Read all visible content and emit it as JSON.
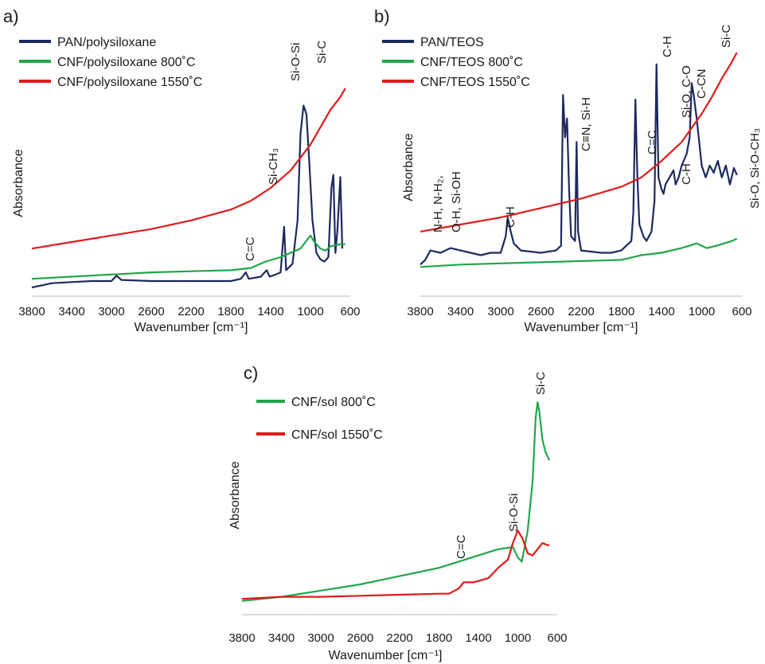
{
  "chart_data": [
    {
      "panel": "a)",
      "type": "line",
      "xlabel": "Wavenumber  [cm⁻¹]",
      "ylabel": "Absorbance",
      "x_ticks": [
        3800,
        3400,
        3000,
        2600,
        2200,
        1800,
        1400,
        1000,
        600
      ],
      "xlim": [
        3800,
        600
      ],
      "x_reversed": true,
      "ylim": [
        0,
        1
      ],
      "legend_position": "top-left",
      "series": [
        {
          "name": "PAN/polysiloxane",
          "color": "#1b2a5e",
          "points": [
            [
              3800,
              0.04
            ],
            [
              3700,
              0.05
            ],
            [
              3600,
              0.06
            ],
            [
              3400,
              0.065
            ],
            [
              3200,
              0.07
            ],
            [
              3000,
              0.07
            ],
            [
              2950,
              0.095
            ],
            [
              2900,
              0.075
            ],
            [
              2600,
              0.07
            ],
            [
              2200,
              0.07
            ],
            [
              1800,
              0.07
            ],
            [
              1700,
              0.08
            ],
            [
              1650,
              0.11
            ],
            [
              1620,
              0.08
            ],
            [
              1500,
              0.09
            ],
            [
              1440,
              0.12
            ],
            [
              1410,
              0.09
            ],
            [
              1350,
              0.1
            ],
            [
              1300,
              0.11
            ],
            [
              1265,
              0.32
            ],
            [
              1245,
              0.12
            ],
            [
              1180,
              0.15
            ],
            [
              1130,
              0.35
            ],
            [
              1100,
              0.75
            ],
            [
              1070,
              0.88
            ],
            [
              1040,
              0.84
            ],
            [
              1010,
              0.6
            ],
            [
              980,
              0.35
            ],
            [
              940,
              0.2
            ],
            [
              900,
              0.17
            ],
            [
              860,
              0.16
            ],
            [
              820,
              0.18
            ],
            [
              790,
              0.5
            ],
            [
              770,
              0.56
            ],
            [
              750,
              0.2
            ],
            [
              730,
              0.3
            ],
            [
              700,
              0.55
            ],
            [
              680,
              0.22
            ]
          ]
        },
        {
          "name": "CNF/polysiloxane  800˚C",
          "color": "#22a64a",
          "points": [
            [
              3800,
              0.08
            ],
            [
              3400,
              0.09
            ],
            [
              3000,
              0.1
            ],
            [
              2600,
              0.11
            ],
            [
              2200,
              0.115
            ],
            [
              1800,
              0.12
            ],
            [
              1600,
              0.13
            ],
            [
              1450,
              0.16
            ],
            [
              1300,
              0.18
            ],
            [
              1200,
              0.2
            ],
            [
              1100,
              0.22
            ],
            [
              1000,
              0.28
            ],
            [
              960,
              0.25
            ],
            [
              900,
              0.22
            ],
            [
              850,
              0.21
            ],
            [
              800,
              0.23
            ],
            [
              700,
              0.24
            ],
            [
              650,
              0.24
            ]
          ]
        },
        {
          "name": "CNF/polysiloxane  1550˚C",
          "color": "#e01b1b",
          "points": [
            [
              3800,
              0.22
            ],
            [
              3400,
              0.25
            ],
            [
              3000,
              0.28
            ],
            [
              2600,
              0.31
            ],
            [
              2200,
              0.35
            ],
            [
              1800,
              0.4
            ],
            [
              1600,
              0.44
            ],
            [
              1400,
              0.5
            ],
            [
              1300,
              0.54
            ],
            [
              1200,
              0.58
            ],
            [
              1100,
              0.64
            ],
            [
              1000,
              0.7
            ],
            [
              900,
              0.78
            ],
            [
              800,
              0.86
            ],
            [
              700,
              0.92
            ],
            [
              650,
              0.96
            ]
          ]
        }
      ],
      "annotations": [
        "C=C",
        "Si-CH₃",
        "Si-O-Si",
        "Si-C"
      ]
    },
    {
      "panel": "b)",
      "type": "line",
      "xlabel": "Wavenumber  [cm⁻¹]",
      "ylabel": "Absorbance",
      "x_ticks": [
        3800,
        3400,
        3000,
        2600,
        2200,
        1800,
        1400,
        1000,
        600
      ],
      "xlim": [
        3800,
        600
      ],
      "x_reversed": true,
      "ylim": [
        0,
        1
      ],
      "legend_position": "top-left",
      "series": [
        {
          "name": "PAN/TEOS",
          "color": "#1b2a5e",
          "points": [
            [
              3800,
              0.08
            ],
            [
              3750,
              0.1
            ],
            [
              3700,
              0.14
            ],
            [
              3600,
              0.13
            ],
            [
              3500,
              0.15
            ],
            [
              3400,
              0.14
            ],
            [
              3300,
              0.13
            ],
            [
              3200,
              0.12
            ],
            [
              3100,
              0.13
            ],
            [
              3000,
              0.13
            ],
            [
              2950,
              0.2
            ],
            [
              2930,
              0.28
            ],
            [
              2900,
              0.22
            ],
            [
              2870,
              0.17
            ],
            [
              2800,
              0.14
            ],
            [
              2600,
              0.13
            ],
            [
              2450,
              0.14
            ],
            [
              2400,
              0.16
            ],
            [
              2380,
              0.8
            ],
            [
              2360,
              0.62
            ],
            [
              2340,
              0.7
            ],
            [
              2320,
              0.4
            ],
            [
              2300,
              0.2
            ],
            [
              2260,
              0.18
            ],
            [
              2245,
              0.6
            ],
            [
              2230,
              0.22
            ],
            [
              2200,
              0.14
            ],
            [
              2000,
              0.13
            ],
            [
              1900,
              0.13
            ],
            [
              1800,
              0.14
            ],
            [
              1700,
              0.18
            ],
            [
              1680,
              0.3
            ],
            [
              1660,
              0.78
            ],
            [
              1640,
              0.45
            ],
            [
              1620,
              0.25
            ],
            [
              1580,
              0.2
            ],
            [
              1550,
              0.18
            ],
            [
              1500,
              0.22
            ],
            [
              1470,
              0.35
            ],
            [
              1450,
              0.93
            ],
            [
              1430,
              0.45
            ],
            [
              1400,
              0.4
            ],
            [
              1380,
              0.38
            ],
            [
              1360,
              0.42
            ],
            [
              1320,
              0.45
            ],
            [
              1280,
              0.48
            ],
            [
              1260,
              0.42
            ],
            [
              1230,
              0.45
            ],
            [
              1200,
              0.5
            ],
            [
              1150,
              0.55
            ],
            [
              1120,
              0.62
            ],
            [
              1100,
              0.85
            ],
            [
              1080,
              0.8
            ],
            [
              1050,
              0.7
            ],
            [
              1000,
              0.5
            ],
            [
              960,
              0.45
            ],
            [
              920,
              0.5
            ],
            [
              880,
              0.47
            ],
            [
              840,
              0.52
            ],
            [
              800,
              0.45
            ],
            [
              760,
              0.5
            ],
            [
              720,
              0.42
            ],
            [
              680,
              0.49
            ],
            [
              650,
              0.46
            ]
          ]
        },
        {
          "name": "CNF/TEOS 800˚C",
          "color": "#22a64a",
          "points": [
            [
              3800,
              0.07
            ],
            [
              3400,
              0.08
            ],
            [
              3000,
              0.085
            ],
            [
              2600,
              0.09
            ],
            [
              2200,
              0.095
            ],
            [
              1800,
              0.1
            ],
            [
              1600,
              0.12
            ],
            [
              1400,
              0.13
            ],
            [
              1200,
              0.15
            ],
            [
              1050,
              0.17
            ],
            [
              950,
              0.15
            ],
            [
              850,
              0.16
            ],
            [
              700,
              0.18
            ],
            [
              650,
              0.19
            ]
          ]
        },
        {
          "name": "CNF/TEOS 1550˚C",
          "color": "#e01b1b",
          "points": [
            [
              3800,
              0.22
            ],
            [
              3400,
              0.25
            ],
            [
              3000,
              0.28
            ],
            [
              2600,
              0.32
            ],
            [
              2200,
              0.36
            ],
            [
              1800,
              0.41
            ],
            [
              1600,
              0.45
            ],
            [
              1400,
              0.52
            ],
            [
              1200,
              0.6
            ],
            [
              1000,
              0.72
            ],
            [
              900,
              0.79
            ],
            [
              800,
              0.87
            ],
            [
              700,
              0.94
            ],
            [
              650,
              0.98
            ]
          ]
        }
      ],
      "annotations": [
        "N-H, N-H₂,",
        "O-H, Si-OH",
        "C-H",
        "C≡N, Si-H",
        "C=C",
        "C-H",
        "Si-O, C-O",
        "C-CN",
        "C-H",
        "Si-C",
        "Si-O, Si-O-CH₃"
      ]
    },
    {
      "panel": "c)",
      "type": "line",
      "xlabel": "Wavenumber  [cm⁻¹]",
      "ylabel": "Absorbance",
      "x_ticks": [
        3800,
        3400,
        3000,
        2600,
        2200,
        1800,
        1400,
        1000,
        600
      ],
      "xlim": [
        3800,
        600
      ],
      "x_reversed": true,
      "ylim": [
        0,
        1
      ],
      "legend_position": "top-left",
      "series": [
        {
          "name": "CNF/sol  800˚C",
          "color": "#22a64a",
          "points": [
            [
              3800,
              0.02
            ],
            [
              3400,
              0.04
            ],
            [
              3000,
              0.07
            ],
            [
              2600,
              0.1
            ],
            [
              2200,
              0.14
            ],
            [
              1800,
              0.18
            ],
            [
              1600,
              0.21
            ],
            [
              1400,
              0.24
            ],
            [
              1200,
              0.27
            ],
            [
              1050,
              0.28
            ],
            [
              1000,
              0.23
            ],
            [
              960,
              0.21
            ],
            [
              900,
              0.36
            ],
            [
              850,
              0.6
            ],
            [
              820,
              0.9
            ],
            [
              800,
              0.98
            ],
            [
              780,
              0.93
            ],
            [
              750,
              0.8
            ],
            [
              720,
              0.74
            ],
            [
              680,
              0.7
            ]
          ]
        },
        {
          "name": "CNF/sol 1550˚C",
          "color": "#e01b1b",
          "points": [
            [
              3800,
              0.03
            ],
            [
              3400,
              0.04
            ],
            [
              3000,
              0.04
            ],
            [
              2600,
              0.045
            ],
            [
              2200,
              0.05
            ],
            [
              1800,
              0.055
            ],
            [
              1700,
              0.055
            ],
            [
              1600,
              0.08
            ],
            [
              1550,
              0.11
            ],
            [
              1450,
              0.11
            ],
            [
              1300,
              0.13
            ],
            [
              1200,
              0.18
            ],
            [
              1100,
              0.22
            ],
            [
              1050,
              0.3
            ],
            [
              1000,
              0.36
            ],
            [
              950,
              0.32
            ],
            [
              900,
              0.25
            ],
            [
              850,
              0.24
            ],
            [
              800,
              0.27
            ],
            [
              750,
              0.3
            ],
            [
              700,
              0.29
            ],
            [
              680,
              0.29
            ]
          ]
        }
      ],
      "annotations": [
        "C=C",
        "Si-O-Si",
        "Si-C"
      ]
    }
  ]
}
